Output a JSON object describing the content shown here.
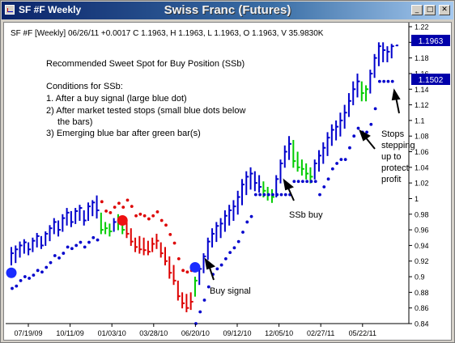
{
  "window": {
    "title": "SF #F Weekly",
    "center_title": "Swiss Franc (Futures)",
    "buttons": {
      "minimize": "_",
      "maximize": "□",
      "close": "✕"
    }
  },
  "chart_info": "SF #F [Weekly] 06/26/11  +0.0017 C 1.1963, H 1.1963, L 1.1963, O 1.1963, V 35.9830K",
  "price_labels": {
    "last": "1.1963",
    "stop": "1.1502"
  },
  "colors": {
    "up": "#0000cc",
    "neutral": "#00cc00",
    "down": "#dd0000",
    "stop": "#0000cc",
    "marker_buy": "#1a2cff",
    "marker_sell": "#ee1111",
    "label_bg": "#0000aa"
  },
  "annotations": {
    "heading": "Recommended Sweet Spot for Buy Position (SSb)",
    "conditions_title": "Conditions for SSb:",
    "condition1": "1. After a buy signal (large blue dot)",
    "condition2a": "2) After market tested stops (small blue dots below",
    "condition2b": "the bars)",
    "condition3": "3) Emerging blue bar after green bar(s)",
    "buy_signal": "Buy signal",
    "ssb_buy": "SSb buy",
    "stops_lines": [
      "Stops",
      "stepping",
      "up to",
      "protect",
      "profit"
    ]
  },
  "chart_data": {
    "type": "bar",
    "ylim": [
      0.84,
      1.22
    ],
    "y_ticks": [
      "1.22",
      "1.2",
      "1.18",
      "1.16",
      "1.14",
      "1.12",
      "1.1",
      "1.08",
      "1.06",
      "1.04",
      "1.02",
      "1",
      "0.98",
      "0.96",
      "0.94",
      "0.92",
      "0.9",
      "0.88",
      "0.86",
      "0.84"
    ],
    "x_ticks": [
      "07/19/09",
      "10/11/09",
      "01/03/10",
      "03/28/10",
      "06/20/10",
      "09/12/10",
      "12/05/10",
      "02/27/11",
      "05/22/11"
    ],
    "bars": [
      {
        "h": 0.938,
        "l": 0.915,
        "c": 0.93,
        "t": "u"
      },
      {
        "h": 0.94,
        "l": 0.918,
        "c": 0.935,
        "t": "u"
      },
      {
        "h": 0.945,
        "l": 0.925,
        "c": 0.94,
        "t": "u"
      },
      {
        "h": 0.948,
        "l": 0.93,
        "c": 0.944,
        "t": "u"
      },
      {
        "h": 0.944,
        "l": 0.928,
        "c": 0.935,
        "t": "u"
      },
      {
        "h": 0.95,
        "l": 0.932,
        "c": 0.946,
        "t": "u"
      },
      {
        "h": 0.956,
        "l": 0.938,
        "c": 0.952,
        "t": "u"
      },
      {
        "h": 0.952,
        "l": 0.936,
        "c": 0.94,
        "t": "u"
      },
      {
        "h": 0.958,
        "l": 0.94,
        "c": 0.955,
        "t": "u"
      },
      {
        "h": 0.966,
        "l": 0.946,
        "c": 0.962,
        "t": "u"
      },
      {
        "h": 0.975,
        "l": 0.955,
        "c": 0.97,
        "t": "u"
      },
      {
        "h": 0.972,
        "l": 0.952,
        "c": 0.96,
        "t": "u"
      },
      {
        "h": 0.98,
        "l": 0.958,
        "c": 0.975,
        "t": "u"
      },
      {
        "h": 0.988,
        "l": 0.966,
        "c": 0.982,
        "t": "u"
      },
      {
        "h": 0.984,
        "l": 0.964,
        "c": 0.97,
        "t": "u"
      },
      {
        "h": 0.988,
        "l": 0.968,
        "c": 0.984,
        "t": "u"
      },
      {
        "h": 0.992,
        "l": 0.972,
        "c": 0.988,
        "t": "u"
      },
      {
        "h": 0.985,
        "l": 0.966,
        "c": 0.972,
        "t": "u"
      },
      {
        "h": 0.995,
        "l": 0.972,
        "c": 0.99,
        "t": "u"
      },
      {
        "h": 0.998,
        "l": 0.978,
        "c": 0.995,
        "t": "u"
      },
      {
        "h": 1.004,
        "l": 0.975,
        "c": 0.985,
        "t": "u"
      },
      {
        "h": 0.982,
        "l": 0.955,
        "c": 0.96,
        "t": "g"
      },
      {
        "h": 0.97,
        "l": 0.955,
        "c": 0.962,
        "t": "g"
      },
      {
        "h": 0.968,
        "l": 0.952,
        "c": 0.958,
        "t": "g"
      },
      {
        "h": 0.975,
        "l": 0.958,
        "c": 0.97,
        "t": "u"
      },
      {
        "h": 0.98,
        "l": 0.96,
        "c": 0.974,
        "t": "g"
      },
      {
        "h": 0.975,
        "l": 0.955,
        "c": 0.96,
        "t": "g"
      },
      {
        "h": 0.97,
        "l": 0.95,
        "c": 0.955,
        "t": "r"
      },
      {
        "h": 0.962,
        "l": 0.94,
        "c": 0.945,
        "t": "r"
      },
      {
        "h": 0.95,
        "l": 0.932,
        "c": 0.938,
        "t": "r"
      },
      {
        "h": 0.952,
        "l": 0.93,
        "c": 0.935,
        "t": "r"
      },
      {
        "h": 0.95,
        "l": 0.928,
        "c": 0.934,
        "t": "r"
      },
      {
        "h": 0.946,
        "l": 0.928,
        "c": 0.932,
        "t": "r"
      },
      {
        "h": 0.95,
        "l": 0.932,
        "c": 0.942,
        "t": "r"
      },
      {
        "h": 0.955,
        "l": 0.936,
        "c": 0.946,
        "t": "r"
      },
      {
        "h": 0.944,
        "l": 0.925,
        "c": 0.93,
        "t": "r"
      },
      {
        "h": 0.938,
        "l": 0.915,
        "c": 0.92,
        "t": "r"
      },
      {
        "h": 0.926,
        "l": 0.898,
        "c": 0.905,
        "t": "r"
      },
      {
        "h": 0.915,
        "l": 0.89,
        "c": 0.895,
        "t": "r"
      },
      {
        "h": 0.895,
        "l": 0.87,
        "c": 0.875,
        "t": "r"
      },
      {
        "h": 0.88,
        "l": 0.86,
        "c": 0.866,
        "t": "r"
      },
      {
        "h": 0.878,
        "l": 0.855,
        "c": 0.86,
        "t": "r"
      },
      {
        "h": 0.88,
        "l": 0.858,
        "c": 0.868,
        "t": "r"
      },
      {
        "h": 0.9,
        "l": 0.875,
        "c": 0.895,
        "t": "g"
      },
      {
        "h": 0.914,
        "l": 0.89,
        "c": 0.91,
        "t": "u"
      },
      {
        "h": 0.93,
        "l": 0.905,
        "c": 0.926,
        "t": "u"
      },
      {
        "h": 0.95,
        "l": 0.922,
        "c": 0.945,
        "t": "u"
      },
      {
        "h": 0.962,
        "l": 0.938,
        "c": 0.955,
        "t": "u"
      },
      {
        "h": 0.97,
        "l": 0.945,
        "c": 0.965,
        "t": "u"
      },
      {
        "h": 0.975,
        "l": 0.95,
        "c": 0.968,
        "t": "u"
      },
      {
        "h": 0.985,
        "l": 0.958,
        "c": 0.978,
        "t": "u"
      },
      {
        "h": 0.992,
        "l": 0.966,
        "c": 0.985,
        "t": "u"
      },
      {
        "h": 0.998,
        "l": 0.972,
        "c": 0.99,
        "t": "u"
      },
      {
        "h": 1.01,
        "l": 0.98,
        "c": 1.002,
        "t": "u"
      },
      {
        "h": 1.025,
        "l": 0.992,
        "c": 1.018,
        "t": "u"
      },
      {
        "h": 1.035,
        "l": 1.005,
        "c": 1.028,
        "t": "u"
      },
      {
        "h": 1.04,
        "l": 1.012,
        "c": 1.032,
        "t": "u"
      },
      {
        "h": 1.035,
        "l": 1.01,
        "c": 1.02,
        "t": "u"
      },
      {
        "h": 1.03,
        "l": 1.008,
        "c": 1.015,
        "t": "u"
      },
      {
        "h": 1.022,
        "l": 1.002,
        "c": 1.01,
        "t": "g"
      },
      {
        "h": 1.015,
        "l": 0.998,
        "c": 1.005,
        "t": "g"
      },
      {
        "h": 1.012,
        "l": 0.995,
        "c": 1.002,
        "t": "g"
      },
      {
        "h": 1.03,
        "l": 1.002,
        "c": 1.025,
        "t": "u"
      },
      {
        "h": 1.05,
        "l": 1.02,
        "c": 1.045,
        "t": "u"
      },
      {
        "h": 1.068,
        "l": 1.04,
        "c": 1.06,
        "t": "u"
      },
      {
        "h": 1.08,
        "l": 1.05,
        "c": 1.07,
        "t": "u"
      },
      {
        "h": 1.075,
        "l": 1.04,
        "c": 1.048,
        "t": "g"
      },
      {
        "h": 1.06,
        "l": 1.035,
        "c": 1.04,
        "t": "g"
      },
      {
        "h": 1.05,
        "l": 1.03,
        "c": 1.038,
        "t": "g"
      },
      {
        "h": 1.045,
        "l": 1.025,
        "c": 1.032,
        "t": "g"
      },
      {
        "h": 1.04,
        "l": 1.02,
        "c": 1.028,
        "t": "g"
      },
      {
        "h": 1.05,
        "l": 1.025,
        "c": 1.045,
        "t": "u"
      },
      {
        "h": 1.062,
        "l": 1.035,
        "c": 1.055,
        "t": "u"
      },
      {
        "h": 1.072,
        "l": 1.045,
        "c": 1.065,
        "t": "u"
      },
      {
        "h": 1.085,
        "l": 1.055,
        "c": 1.078,
        "t": "u"
      },
      {
        "h": 1.095,
        "l": 1.068,
        "c": 1.088,
        "t": "u"
      },
      {
        "h": 1.1,
        "l": 1.075,
        "c": 1.092,
        "t": "u"
      },
      {
        "h": 1.11,
        "l": 1.08,
        "c": 1.1,
        "t": "u"
      },
      {
        "h": 1.12,
        "l": 1.09,
        "c": 1.11,
        "t": "u"
      },
      {
        "h": 1.135,
        "l": 1.105,
        "c": 1.125,
        "t": "u"
      },
      {
        "h": 1.15,
        "l": 1.12,
        "c": 1.14,
        "t": "u"
      },
      {
        "h": 1.16,
        "l": 1.13,
        "c": 1.15,
        "t": "u"
      },
      {
        "h": 1.15,
        "l": 1.125,
        "c": 1.135,
        "t": "g"
      },
      {
        "h": 1.145,
        "l": 1.125,
        "c": 1.14,
        "t": "g"
      },
      {
        "h": 1.165,
        "l": 1.135,
        "c": 1.16,
        "t": "u"
      },
      {
        "h": 1.185,
        "l": 1.155,
        "c": 1.18,
        "t": "u"
      },
      {
        "h": 1.2,
        "l": 1.17,
        "c": 1.195,
        "t": "u"
      },
      {
        "h": 1.2,
        "l": 1.175,
        "c": 1.19,
        "t": "u"
      },
      {
        "h": 1.195,
        "l": 1.175,
        "c": 1.188,
        "t": "u"
      },
      {
        "h": 1.198,
        "l": 1.18,
        "c": 1.195,
        "t": "u"
      },
      {
        "h": 1.196,
        "l": 1.196,
        "c": 1.196,
        "t": "u"
      }
    ],
    "stop_runs": [
      {
        "from": 0,
        "to": 7,
        "side": "below",
        "offset": 0.03
      },
      {
        "from": 8,
        "to": 20,
        "side": "below",
        "offset": 0.028
      },
      {
        "from": 21,
        "to": 26,
        "side": "above",
        "offset": 0.014
      },
      {
        "from": 27,
        "to": 42,
        "side": "above",
        "offset": 0.028
      },
      {
        "from": 43,
        "to": 56,
        "side": "below",
        "offset": 0.035
      },
      {
        "from": 57,
        "to": 65,
        "side": "flat",
        "value": 1.005
      },
      {
        "from": 66,
        "to": 71,
        "side": "flat",
        "value": 1.022
      },
      {
        "from": 72,
        "to": 77,
        "side": "below",
        "offset": 0.03
      },
      {
        "from": 78,
        "to": 85,
        "side": "below",
        "offset": 0.04
      },
      {
        "from": 86,
        "to": 89,
        "side": "flat",
        "value": 1.15
      }
    ],
    "signals": [
      {
        "i": 0,
        "type": "buy",
        "y": 0.905
      },
      {
        "i": 26,
        "type": "sell",
        "y": 0.972
      },
      {
        "i": 43,
        "type": "buy",
        "y": 0.912
      }
    ]
  }
}
